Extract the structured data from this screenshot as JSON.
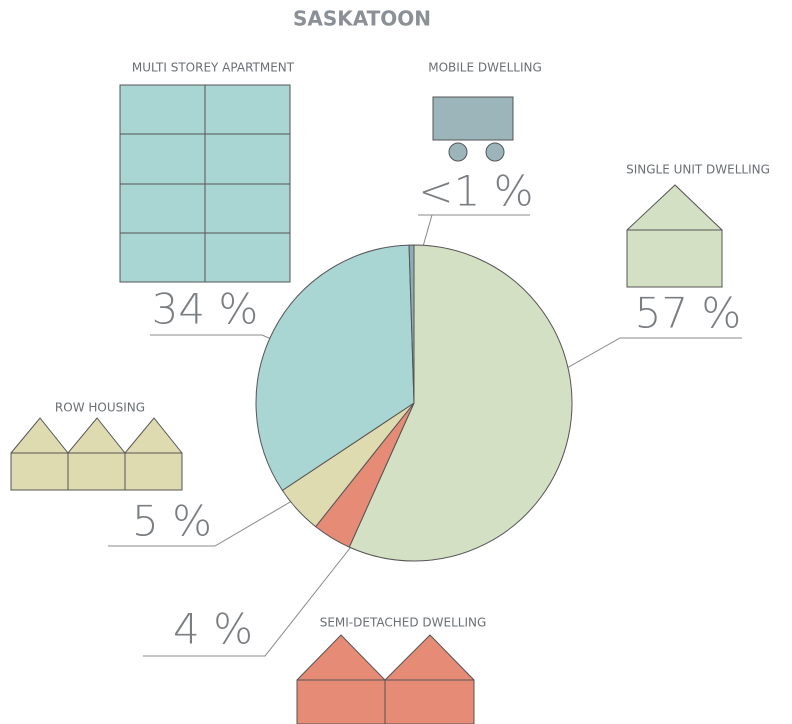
{
  "chart_data": {
    "type": "pie",
    "title": "SASKATOON",
    "categories": [
      "SINGLE  UNIT DWELLING",
      "SEMI-DETACHED DWELLING",
      "ROW HOUSING",
      "MULTI STOREY APARTMENT",
      "MOBILE DWELLING"
    ],
    "values": [
      57,
      4,
      5,
      34,
      0.5
    ],
    "value_labels": [
      "57 %",
      "4 %",
      "5 %",
      "34 %",
      "<1 %"
    ],
    "colors": [
      "#d4e0c3",
      "#e58b76",
      "#dedbb1",
      "#a9d5d3",
      "#8fadb5"
    ]
  }
}
